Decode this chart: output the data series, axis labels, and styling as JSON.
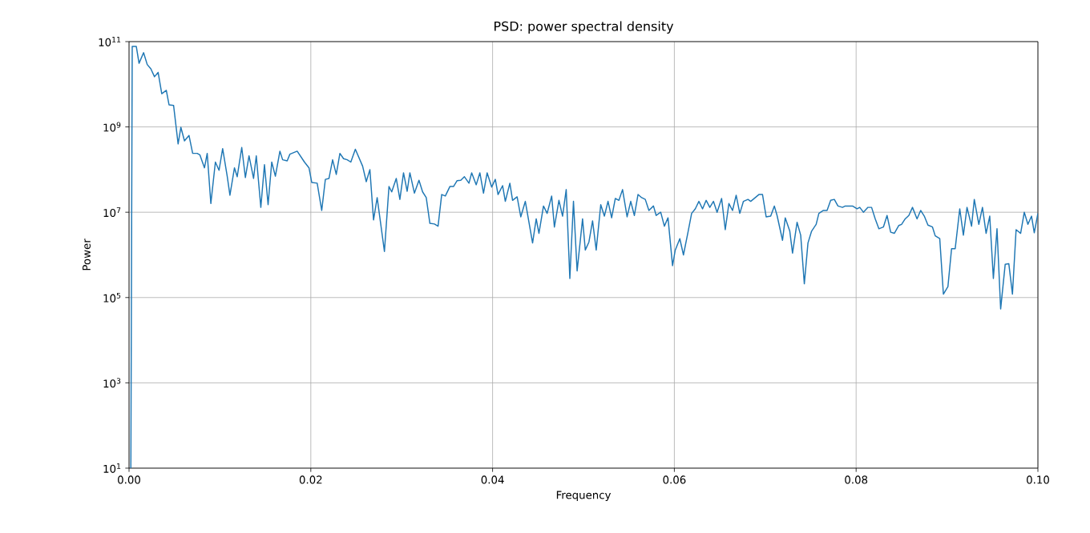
{
  "chart_data": {
    "type": "line",
    "title": "PSD: power spectral density",
    "xlabel": "Frequency",
    "ylabel": "Power",
    "color": "#1f77b4",
    "log": "y",
    "grid": true,
    "xlim": [
      0,
      0.1
    ],
    "ylim": [
      10,
      100000000000.0
    ],
    "xticks": [
      {
        "value": 0,
        "label": "0.00"
      },
      {
        "value": 0.02,
        "label": "0.02"
      },
      {
        "value": 0.04,
        "label": "0.04"
      },
      {
        "value": 0.06,
        "label": "0.06"
      },
      {
        "value": 0.08,
        "label": "0.08"
      },
      {
        "value": 0.1,
        "label": "0.10"
      }
    ],
    "yticks": [
      {
        "value": 10,
        "label": "10$^{1}$"
      },
      {
        "value": 1000,
        "label": "10$^{3}$"
      },
      {
        "value": 100000,
        "label": "10$^{5}$"
      },
      {
        "value": 10000000,
        "label": "10$^{7}$"
      },
      {
        "value": 1000000000,
        "label": "10$^{9}$"
      },
      {
        "value": 100000000000,
        "label": "10$^{11}$"
      }
    ],
    "x": [
      0.0002,
      0.00035,
      0.0008,
      0.0011,
      0.0016,
      0.002,
      0.0024,
      0.0028,
      0.0032,
      0.0036,
      0.0041,
      0.0044,
      0.0049,
      0.0054,
      0.0057,
      0.0061,
      0.0066,
      0.007,
      0.0075,
      0.0078,
      0.0083,
      0.0086,
      0.009,
      0.0095,
      0.0099,
      0.0103,
      0.0108,
      0.0111,
      0.0116,
      0.0119,
      0.0124,
      0.0128,
      0.0132,
      0.0137,
      0.014,
      0.0145,
      0.0149,
      0.0153,
      0.0157,
      0.0161,
      0.0166,
      0.0169,
      0.0174,
      0.0177,
      0.0185,
      0.0193,
      0.0198,
      0.0201,
      0.0207,
      0.0212,
      0.0216,
      0.022,
      0.0224,
      0.0228,
      0.0232,
      0.0236,
      0.024,
      0.0244,
      0.0249,
      0.0257,
      0.0261,
      0.0265,
      0.0269,
      0.0273,
      0.0281,
      0.0286,
      0.0289,
      0.0294,
      0.0298,
      0.0302,
      0.0306,
      0.0309,
      0.0314,
      0.0319,
      0.0323,
      0.0327,
      0.0331,
      0.0336,
      0.034,
      0.0344,
      0.0348,
      0.0353,
      0.0357,
      0.0361,
      0.0365,
      0.0369,
      0.0374,
      0.0377,
      0.0382,
      0.0386,
      0.039,
      0.0394,
      0.0399,
      0.0403,
      0.0406,
      0.0411,
      0.0414,
      0.0419,
      0.0422,
      0.0427,
      0.0431,
      0.0436,
      0.0444,
      0.0448,
      0.0451,
      0.0456,
      0.046,
      0.0465,
      0.0468,
      0.0473,
      0.0477,
      0.0481,
      0.0485,
      0.0489,
      0.0493,
      0.0499,
      0.0502,
      0.0506,
      0.051,
      0.0514,
      0.0519,
      0.0523,
      0.0527,
      0.0531,
      0.0535,
      0.0539,
      0.0543,
      0.0548,
      0.0552,
      0.0556,
      0.056,
      0.0564,
      0.0568,
      0.0572,
      0.0577,
      0.058,
      0.0585,
      0.0589,
      0.0593,
      0.0598,
      0.0601,
      0.0606,
      0.061,
      0.0615,
      0.0619,
      0.0623,
      0.0627,
      0.0631,
      0.0635,
      0.0639,
      0.0643,
      0.0647,
      0.0652,
      0.0656,
      0.066,
      0.0664,
      0.0668,
      0.0672,
      0.0676,
      0.0681,
      0.0684,
      0.0693,
      0.0697,
      0.0701,
      0.0706,
      0.071,
      0.0713,
      0.0719,
      0.0722,
      0.0727,
      0.073,
      0.0735,
      0.0739,
      0.0743,
      0.0747,
      0.0751,
      0.0756,
      0.0759,
      0.0764,
      0.0768,
      0.0772,
      0.0776,
      0.078,
      0.0785,
      0.0788,
      0.0796,
      0.0801,
      0.0804,
      0.0808,
      0.0813,
      0.0817,
      0.0821,
      0.0825,
      0.083,
      0.0834,
      0.0838,
      0.0842,
      0.0847,
      0.085,
      0.0854,
      0.0858,
      0.0862,
      0.0867,
      0.0871,
      0.0875,
      0.0879,
      0.0884,
      0.0887,
      0.0892,
      0.0896,
      0.0901,
      0.0905,
      0.0909,
      0.0914,
      0.0918,
      0.0922,
      0.0927,
      0.093,
      0.0935,
      0.0939,
      0.0943,
      0.0947,
      0.0951,
      0.0955,
      0.0959,
      0.0964,
      0.0968,
      0.0972,
      0.0976,
      0.0981,
      0.0985,
      0.0989,
      0.0993,
      0.0996,
      0.1
    ],
    "values": [
      10,
      77000000000.0,
      77000000000.0,
      31000000000.0,
      55000000000.0,
      29000000000.0,
      23000000000.0,
      15000000000.0,
      19000000000.0,
      6000000000.0,
      7200000000.0,
      3300000000.0,
      3200000000.0,
      400000000.0,
      980000000.0,
      470000000.0,
      630000000.0,
      240000000.0,
      240000000.0,
      220000000.0,
      110000000.0,
      240000000.0,
      16000000.0,
      150000000.0,
      96000000.0,
      310000000.0,
      70000000.0,
      25000000.0,
      110000000.0,
      68000000.0,
      330000000.0,
      65000000.0,
      210000000.0,
      62000000.0,
      210000000.0,
      13000000.0,
      130000000.0,
      15000000.0,
      150000000.0,
      70000000.0,
      270000000.0,
      170000000.0,
      160000000.0,
      230000000.0,
      270000000.0,
      150000000.0,
      110000000.0,
      50000000.0,
      48000000.0,
      11000000.0,
      59000000.0,
      62000000.0,
      170000000.0,
      77000000.0,
      240000000.0,
      180000000.0,
      170000000.0,
      150000000.0,
      300000000.0,
      120000000.0,
      52000000.0,
      100000000.0,
      6600000.0,
      22000000.0,
      1200000.0,
      40000000.0,
      30000000.0,
      62000000.0,
      20000000.0,
      84000000.0,
      31000000.0,
      84000000.0,
      28000000.0,
      56000000.0,
      30000000.0,
      22000000.0,
      5500000.0,
      5300000.0,
      4700000.0,
      26000000.0,
      24000000.0,
      40000000.0,
      40000000.0,
      55000000.0,
      56000000.0,
      68000000.0,
      48000000.0,
      84000000.0,
      44000000.0,
      84000000.0,
      28000000.0,
      84000000.0,
      39000000.0,
      59000000.0,
      26000000.0,
      42000000.0,
      18000000.0,
      48000000.0,
      19000000.0,
      23000000.0,
      7800000.0,
      18000000.0,
      1900000.0,
      7000000.0,
      3200000.0,
      14000000.0,
      9400000.0,
      24000000.0,
      4500000.0,
      19000000.0,
      8100000.0,
      34000000.0,
      280000.0,
      18000000.0,
      420000.0,
      7000000.0,
      1300000.0,
      2000000.0,
      6300000.0,
      1300000.0,
      15000000.0,
      8100000.0,
      18000000.0,
      7400000.0,
      21000000.0,
      19000000.0,
      34000000.0,
      7800000.0,
      18000000.0,
      8400000.0,
      26000000.0,
      22000000.0,
      20000000.0,
      11000000.0,
      14000000.0,
      8400000.0,
      10000000.0,
      4700000.0,
      7400000.0,
      560000.0,
      1300000.0,
      2400000.0,
      1000000.0,
      3400000.0,
      9400000.0,
      12000000.0,
      18000000.0,
      12000000.0,
      19000000.0,
      13000000.0,
      18000000.0,
      10000000.0,
      21000000.0,
      3900000.0,
      16000000.0,
      11000000.0,
      25000000.0,
      9400000.0,
      18000000.0,
      20000000.0,
      18000000.0,
      26000000.0,
      26000000.0,
      7800000.0,
      8100000.0,
      14000000.0,
      8400000.0,
      2200000.0,
      7400000.0,
      3600000.0,
      1100000.0,
      5800000.0,
      2900000.0,
      210000.0,
      1900000.0,
      3600000.0,
      5200000.0,
      9400000.0,
      11000000.0,
      11000000.0,
      19000000.0,
      20000000.0,
      14000000.0,
      13000000.0,
      14000000.0,
      14000000.0,
      12000000.0,
      13000000.0,
      10000000.0,
      13000000.0,
      13000000.0,
      7000000.0,
      4100000.0,
      4500000.0,
      8400000.0,
      3400000.0,
      3200000.0,
      4900000.0,
      5200000.0,
      7000000.0,
      8400000.0,
      13000000.0,
      7000000.0,
      11000000.0,
      8100000.0,
      5000000.0,
      4500000.0,
      2800000.0,
      2400000.0,
      120000.0,
      180000.0,
      1400000.0,
      1400000.0,
      12000000.0,
      2900000.0,
      13000000.0,
      4700000.0,
      20000000.0,
      5200000.0,
      13000000.0,
      3200000.0,
      8100000.0,
      280000.0,
      4100000.0,
      54000.0,
      600000.0,
      620000.0,
      120000.0,
      3900000.0,
      3200000.0,
      10000000.0,
      5200000.0,
      8100000.0,
      3300000.0,
      9400000.0
    ]
  }
}
